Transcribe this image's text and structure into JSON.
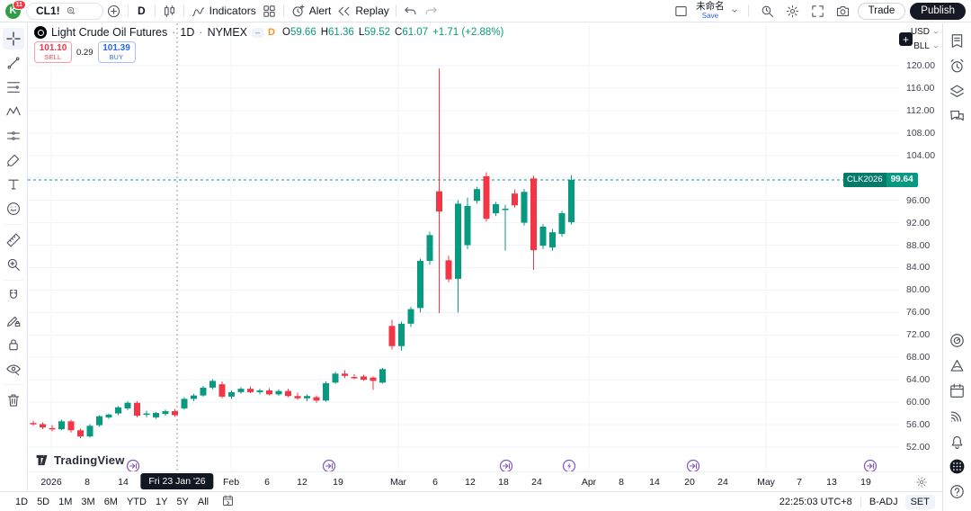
{
  "header": {
    "avatar_letter": "K",
    "avatar_badge": "11",
    "symbol": "CL1!",
    "interval": "D",
    "indicators_label": "Indicators",
    "alert_label": "Alert",
    "replay_label": "Replay",
    "layout_name": "未命名",
    "save_label": "Save",
    "trade_label": "Trade",
    "publish_label": "Publish"
  },
  "legend": {
    "title": "Light Crude Oil Futures",
    "sep1": "·",
    "interval": "1D",
    "sep2": "·",
    "exchange": "NYMEX",
    "minus_badge": "–",
    "interval_badge": "D",
    "o_label": "O",
    "o": "59.66",
    "h_label": "H",
    "h": "61.36",
    "l_label": "L",
    "l": "59.52",
    "c_label": "C",
    "c": "61.07",
    "change": "+1.71 (+2.88%)"
  },
  "order_panel": {
    "sell_price": "101.10",
    "sell_label": "SELL",
    "spread": "0.29",
    "buy_price": "101.39",
    "buy_label": "BUY"
  },
  "brand": {
    "name": "TradingView"
  },
  "price_axis": {
    "currency": "USD",
    "unit": "BLL",
    "plus": "+",
    "ticks": [
      "120.00",
      "116.00",
      "112.00",
      "108.00",
      "104.00",
      "96.00",
      "92.00",
      "88.00",
      "84.00",
      "80.00",
      "76.00",
      "72.00",
      "68.00",
      "64.00",
      "60.00",
      "56.00",
      "52.00"
    ],
    "label": {
      "contract": "CLK2026",
      "price": "99.64"
    }
  },
  "time_axis": {
    "tooltip": "Fri 23 Jan '26",
    "tooltip_x": 197,
    "ticks": [
      {
        "t": "2026",
        "x": 57
      },
      {
        "t": "8",
        "x": 97
      },
      {
        "t": "14",
        "x": 137
      },
      {
        "t": "Feb",
        "x": 257
      },
      {
        "t": "6",
        "x": 297
      },
      {
        "t": "12",
        "x": 336
      },
      {
        "t": "19",
        "x": 376
      },
      {
        "t": "Mar",
        "x": 443
      },
      {
        "t": "6",
        "x": 484
      },
      {
        "t": "12",
        "x": 523
      },
      {
        "t": "18",
        "x": 560
      },
      {
        "t": "24",
        "x": 597
      },
      {
        "t": "Apr",
        "x": 655
      },
      {
        "t": "8",
        "x": 691
      },
      {
        "t": "14",
        "x": 728
      },
      {
        "t": "20",
        "x": 767
      },
      {
        "t": "24",
        "x": 804
      },
      {
        "t": "May",
        "x": 852
      },
      {
        "t": "7",
        "x": 889
      },
      {
        "t": "13",
        "x": 925
      },
      {
        "t": "19",
        "x": 963
      }
    ]
  },
  "footer": {
    "ranges": [
      "1D",
      "5D",
      "1M",
      "3M",
      "6M",
      "YTD",
      "1Y",
      "5Y",
      "All"
    ],
    "clock": "22:25:03 UTC+8",
    "adjustment": "B-ADJ",
    "session": "SET"
  },
  "left_toolbar": [
    {
      "name": "crosshair-tool",
      "icon": "crosshair",
      "active": true
    },
    {
      "name": "trend-line-tool",
      "icon": "trend-line"
    },
    {
      "name": "fib-retracement-tool",
      "icon": "fib"
    },
    {
      "name": "xabcd-pattern-tool",
      "icon": "pattern"
    },
    {
      "name": "forecast-tool",
      "icon": "forecast"
    },
    {
      "name": "brush-tool",
      "icon": "brush"
    },
    {
      "name": "text-tool",
      "icon": "text"
    },
    {
      "name": "emoji-tool",
      "icon": "emoji",
      "sep_after": true
    },
    {
      "name": "ruler-tool",
      "icon": "ruler"
    },
    {
      "name": "zoom-in-tool",
      "icon": "zoom-in",
      "sep_after": true
    },
    {
      "name": "magnet-tool",
      "icon": "magnet"
    },
    {
      "name": "drawing-mode-tool",
      "icon": "draw-lock"
    },
    {
      "name": "lock-drawings-tool",
      "icon": "lock"
    },
    {
      "name": "hide-drawings-tool",
      "icon": "eye-hide",
      "sep_after": true
    },
    {
      "name": "remove-drawings-tool",
      "icon": "trash"
    }
  ],
  "right_sidebar": {
    "top": [
      {
        "name": "watchlist-panel-button",
        "icon": "watchlist"
      },
      {
        "name": "alerts-panel-button",
        "icon": "alarm"
      },
      {
        "name": "object-tree-button",
        "icon": "layers"
      },
      {
        "name": "chat-panel-button",
        "icon": "chat"
      }
    ],
    "bottom": [
      {
        "name": "ideas-button",
        "icon": "ideas"
      },
      {
        "name": "minds-button",
        "icon": "minds"
      },
      {
        "name": "calendar-button",
        "icon": "calendar"
      },
      {
        "name": "streams-button",
        "icon": "broadcast"
      },
      {
        "name": "notifications-button",
        "icon": "bell"
      },
      {
        "name": "apps-button",
        "icon": "apps"
      },
      {
        "name": "help-button",
        "icon": "help"
      }
    ]
  },
  "chart_data": {
    "type": "candlestick",
    "title": "Light Crude Oil Futures 1D NYMEX",
    "symbol": "CL1!",
    "contract": "CLK2026",
    "current_price": 99.64,
    "ylim": [
      52,
      120
    ],
    "y_step": 4,
    "x_start": 37,
    "x_step": 10.5,
    "up_color": "#089981",
    "down_color": "#f23645",
    "grid_color": "#f0f3fa",
    "crosshair_x": 197,
    "crosshair_date": "Fri 23 Jan '26",
    "month_grid_x": [
      57,
      257,
      443,
      655,
      852
    ],
    "markers": [
      {
        "type": "rollover",
        "x": 148
      },
      {
        "type": "rollover",
        "x": 366
      },
      {
        "type": "rollover",
        "x": 563
      },
      {
        "type": "flash",
        "x": 633
      },
      {
        "type": "rollover",
        "x": 771
      },
      {
        "type": "rollover",
        "x": 968
      }
    ],
    "marker_color": "#7e57c2",
    "candles": [
      [
        56.3,
        56.7,
        55.8,
        56.1
      ],
      [
        56.1,
        56.4,
        55.2,
        55.5
      ],
      [
        55.4,
        55.9,
        54.8,
        55.2
      ],
      [
        55.2,
        56.9,
        55.0,
        56.6
      ],
      [
        56.6,
        56.9,
        54.6,
        55.0
      ],
      [
        55.0,
        55.3,
        53.6,
        53.9
      ],
      [
        53.9,
        56.1,
        53.7,
        55.8
      ],
      [
        55.9,
        57.7,
        55.6,
        57.5
      ],
      [
        57.3,
        58.0,
        57.0,
        57.8
      ],
      [
        58.0,
        59.3,
        57.7,
        59.1
      ],
      [
        58.9,
        60.2,
        58.6,
        59.9
      ],
      [
        59.9,
        60.2,
        57.3,
        57.6
      ],
      [
        57.8,
        58.5,
        57.3,
        58.0
      ],
      [
        57.3,
        58.3,
        57.0,
        58.1
      ],
      [
        57.9,
        58.7,
        57.6,
        58.4
      ],
      [
        58.4,
        58.8,
        57.4,
        57.7
      ],
      [
        58.9,
        60.9,
        58.7,
        60.6
      ],
      [
        60.6,
        61.5,
        60.2,
        61.2
      ],
      [
        61.2,
        62.9,
        61.0,
        62.6
      ],
      [
        62.6,
        64.1,
        62.3,
        63.8
      ],
      [
        63.2,
        63.7,
        60.7,
        61.0
      ],
      [
        61.0,
        62.1,
        60.6,
        61.8
      ],
      [
        61.8,
        62.7,
        61.5,
        62.4
      ],
      [
        62.4,
        62.8,
        61.6,
        61.8
      ],
      [
        61.8,
        62.4,
        61.4,
        62.1
      ],
      [
        62.1,
        62.5,
        61.2,
        61.4
      ],
      [
        61.4,
        62.3,
        61.1,
        62.0
      ],
      [
        62.0,
        62.4,
        60.9,
        61.1
      ],
      [
        61.1,
        61.7,
        60.4,
        60.7
      ],
      [
        60.7,
        61.4,
        60.2,
        61.1
      ],
      [
        60.9,
        61.2,
        59.9,
        60.3
      ],
      [
        60.3,
        63.7,
        60.1,
        63.4
      ],
      [
        63.5,
        65.4,
        63.3,
        65.1
      ],
      [
        65.1,
        65.7,
        64.3,
        64.7
      ],
      [
        64.5,
        65.0,
        64.1,
        64.4
      ],
      [
        64.6,
        64.9,
        63.8,
        64.0
      ],
      [
        64.4,
        64.6,
        62.2,
        63.8
      ],
      [
        63.5,
        66.1,
        63.3,
        65.9
      ],
      [
        73.6,
        74.7,
        69.4,
        70.0
      ],
      [
        70.0,
        74.4,
        69.2,
        74.0
      ],
      [
        74.0,
        77.0,
        73.4,
        76.6
      ],
      [
        76.8,
        85.6,
        76.0,
        85.2
      ],
      [
        85.2,
        90.4,
        84.5,
        89.8
      ],
      [
        97.6,
        119.5,
        75.9,
        94.0
      ],
      [
        85.3,
        86.1,
        81.4,
        81.9
      ],
      [
        82.0,
        96.0,
        76.0,
        95.4
      ],
      [
        88.0,
        96.5,
        87.3,
        95.0
      ],
      [
        95.9,
        98.4,
        95.4,
        98.0
      ],
      [
        100.3,
        101.0,
        92.2,
        92.7
      ],
      [
        93.7,
        95.7,
        93.2,
        95.3
      ],
      [
        94.4,
        95.2,
        87.0,
        94.5
      ],
      [
        97.2,
        97.9,
        94.7,
        95.1
      ],
      [
        92.0,
        98.0,
        91.5,
        97.5
      ],
      [
        99.9,
        100.4,
        83.6,
        87.1
      ],
      [
        87.9,
        91.8,
        87.3,
        91.3
      ],
      [
        87.6,
        90.9,
        87.0,
        90.3
      ],
      [
        90.0,
        94.1,
        89.5,
        93.7
      ],
      [
        92.1,
        100.5,
        91.7,
        99.64
      ]
    ]
  }
}
